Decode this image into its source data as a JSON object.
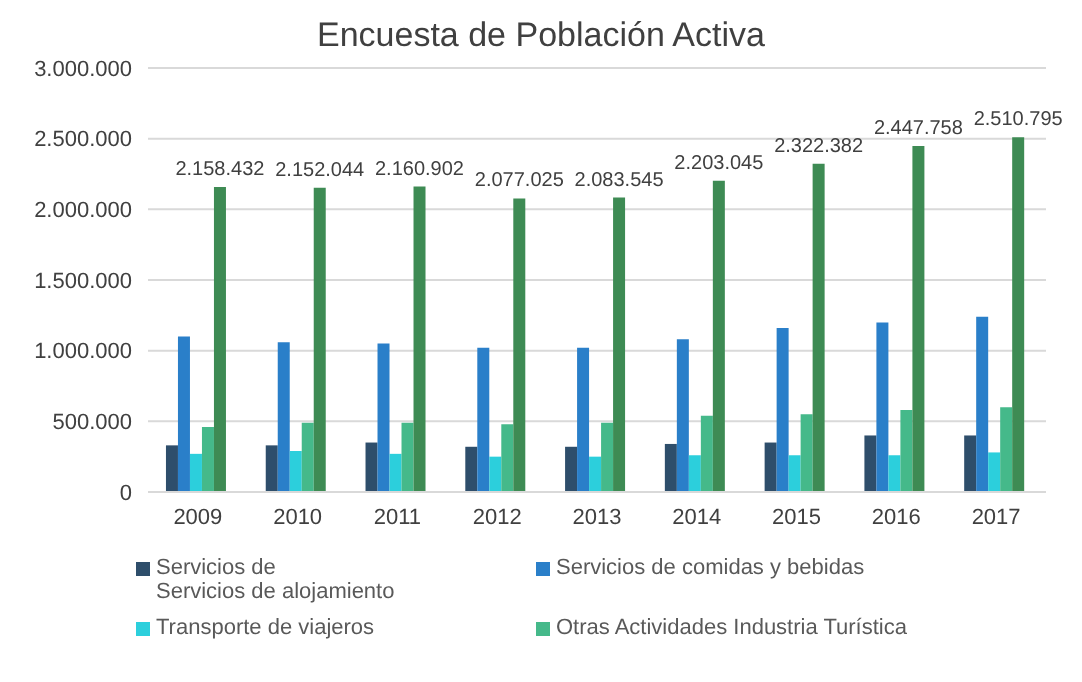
{
  "chart_data": {
    "type": "bar",
    "title": "Encuesta de Población Activa",
    "categories": [
      "2009",
      "2010",
      "2011",
      "2012",
      "2013",
      "2014",
      "2015",
      "2016",
      "2017"
    ],
    "series": [
      {
        "name": "Servicios de\nServicios de alojamiento",
        "color": "#2e4e6b",
        "values": [
          330000,
          330000,
          350000,
          320000,
          320000,
          340000,
          350000,
          400000,
          400000
        ]
      },
      {
        "name": "Servicios de comidas y bebidas",
        "color": "#2a7fc9",
        "values": [
          1100000,
          1060000,
          1050000,
          1020000,
          1020000,
          1080000,
          1160000,
          1200000,
          1240000
        ]
      },
      {
        "name": "Transporte de viajeros",
        "color": "#2ccfdc",
        "values": [
          270000,
          290000,
          270000,
          250000,
          250000,
          260000,
          260000,
          260000,
          280000
        ]
      },
      {
        "name": "Otras Actividades Industria Turística",
        "color": "#45b98a",
        "values": [
          460000,
          490000,
          490000,
          480000,
          490000,
          540000,
          550000,
          580000,
          600000
        ]
      },
      {
        "color": "#3e8b54",
        "values": [
          2158432,
          2152044,
          2160902,
          2077025,
          2083545,
          2203045,
          2322382,
          2447758,
          2510795
        ],
        "value_labels": [
          "2.158.432",
          "2.152.044",
          "2.160.902",
          "2.077.025",
          "2.083.545",
          "2.203.045",
          "2.322.382",
          "2.447.758",
          "2.510.795"
        ]
      }
    ],
    "ylim": [
      0,
      3000000
    ],
    "yticks": [
      0,
      {
        "value": 500000,
        "label": "500.000"
      },
      {
        "value": 1000000,
        "label": "1.000.000"
      },
      {
        "value": 1500000,
        "label": "1.500.000"
      },
      {
        "value": 2000000,
        "label": "2.000.000"
      },
      {
        "value": 2500000,
        "label": "2.500.000"
      },
      {
        "value": 3000000,
        "label": "3.000.000"
      }
    ],
    "grid": "y",
    "legend": "bottom"
  }
}
